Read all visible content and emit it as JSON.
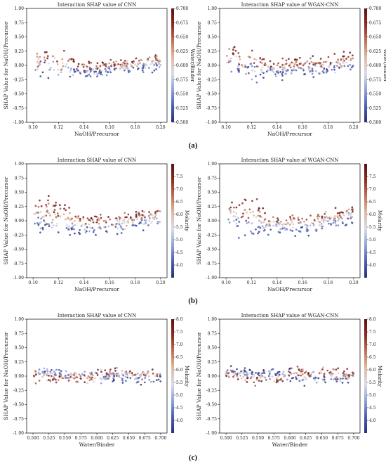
{
  "figure": {
    "captions": [
      "(a)",
      "(b)",
      "(c)"
    ]
  },
  "colors": {
    "colormap": [
      "#2b2f7a",
      "#4a5fb5",
      "#8fa3d9",
      "#d9dbe6",
      "#e2b9a4",
      "#c07254",
      "#8e2a22",
      "#5c0f14"
    ],
    "frame": "#000000"
  },
  "chart_data": [
    {
      "id": "a-cnn",
      "type": "scatter",
      "row": 0,
      "col": 0,
      "seed": 11,
      "title": "Interaction SHAP value of CNN",
      "xlabel": "NaOH/Precursor",
      "ylabel": "SHAP Value for NaOH/Precursor",
      "xlim": [
        0.095,
        0.205
      ],
      "ylim": [
        -1.0,
        1.0
      ],
      "xticks": [
        0.1,
        0.12,
        0.14,
        0.16,
        0.18,
        0.2
      ],
      "xtick_labels": [
        "0.10",
        "0.12",
        "0.14",
        "0.16",
        "0.18",
        "0.20"
      ],
      "yticks": [
        -1.0,
        -0.75,
        -0.5,
        -0.25,
        0.0,
        0.25,
        0.5,
        0.75,
        1.0
      ],
      "ytick_labels": [
        "-1.00",
        "-0.75",
        "-0.50",
        "-0.25",
        "0.00",
        "0.25",
        "0.50",
        "0.75",
        "1.00"
      ],
      "colorbar": {
        "label": "Water/Binder",
        "min": 0.5,
        "max": 0.7,
        "ticks": [
          0.5,
          0.525,
          0.55,
          0.575,
          0.6,
          0.625,
          0.65,
          0.675,
          0.7
        ],
        "tick_labels": [
          "0.500",
          "0.525",
          "0.550",
          "0.575",
          "0.600",
          "0.625",
          "0.650",
          "0.675",
          "0.700"
        ]
      },
      "trend": [
        [
          0.1,
          0.1
        ],
        [
          0.115,
          0.02
        ],
        [
          0.14,
          -0.06
        ],
        [
          0.17,
          -0.03
        ],
        [
          0.2,
          0.08
        ]
      ],
      "color_effect": "naoh-high-high",
      "grid": false
    },
    {
      "id": "a-wgan",
      "type": "scatter",
      "row": 0,
      "col": 1,
      "seed": 23,
      "title": "Interaction SHAP value of WGAN-CNN",
      "xlabel": "NaOH/Precursor",
      "ylabel": "SHAP Value for NaOH/Precursor",
      "xlim": [
        0.095,
        0.205
      ],
      "ylim": [
        -1.0,
        1.0
      ],
      "xticks": [
        0.1,
        0.12,
        0.14,
        0.16,
        0.18,
        0.2
      ],
      "xtick_labels": [
        "0.10",
        "0.12",
        "0.14",
        "0.16",
        "0.18",
        "0.20"
      ],
      "yticks": [
        -1.0,
        -0.75,
        -0.5,
        -0.25,
        0.0,
        0.25,
        0.5,
        0.75,
        1.0
      ],
      "ytick_labels": [
        "-1.00",
        "-0.75",
        "-0.50",
        "-0.25",
        "0.00",
        "0.25",
        "0.50",
        "0.75",
        "1.00"
      ],
      "colorbar": {
        "label": "Water/Binder",
        "min": 0.5,
        "max": 0.7,
        "ticks": [
          0.5,
          0.525,
          0.55,
          0.575,
          0.6,
          0.625,
          0.65,
          0.675,
          0.7
        ],
        "tick_labels": [
          "0.500",
          "0.525",
          "0.550",
          "0.575",
          "0.600",
          "0.625",
          "0.650",
          "0.675",
          "0.700"
        ]
      },
      "trend": [
        [
          0.1,
          0.1
        ],
        [
          0.115,
          0.02
        ],
        [
          0.14,
          -0.06
        ],
        [
          0.17,
          -0.02
        ],
        [
          0.2,
          0.08
        ]
      ],
      "color_effect": "naoh-high-high",
      "grid": false
    },
    {
      "id": "b-cnn",
      "type": "scatter",
      "row": 1,
      "col": 0,
      "seed": 37,
      "title": "Interaction SHAP value of CNN",
      "xlabel": "NaOH/Precursor",
      "ylabel": "SHAP Value for NaOH/Precursor",
      "xlim": [
        0.095,
        0.205
      ],
      "ylim": [
        -1.0,
        1.0
      ],
      "xticks": [
        0.1,
        0.12,
        0.14,
        0.16,
        0.18,
        0.2
      ],
      "xtick_labels": [
        "0.10",
        "0.12",
        "0.14",
        "0.16",
        "0.18",
        "0.20"
      ],
      "yticks": [
        -1.0,
        -0.75,
        -0.5,
        -0.25,
        0.0,
        0.25,
        0.5,
        0.75,
        1.0
      ],
      "ytick_labels": [
        "-1.00",
        "-0.75",
        "-0.50",
        "-0.25",
        "0.00",
        "0.25",
        "0.50",
        "0.75",
        "1.00"
      ],
      "colorbar": {
        "label": "Molarity",
        "min": 3.5,
        "max": 8.0,
        "ticks": [
          4.0,
          4.5,
          5.0,
          5.5,
          6.0,
          6.5,
          7.0,
          7.5
        ],
        "tick_labels": [
          "4.0",
          "4.5",
          "5.0",
          "5.5",
          "6.0",
          "6.5",
          "7.0",
          "7.5"
        ]
      },
      "trend": [
        [
          0.1,
          0.12
        ],
        [
          0.12,
          0.04
        ],
        [
          0.14,
          -0.08
        ],
        [
          0.17,
          -0.03
        ],
        [
          0.2,
          0.1
        ]
      ],
      "color_effect": "naoh-low-high",
      "grid": false
    },
    {
      "id": "b-wgan",
      "type": "scatter",
      "row": 1,
      "col": 1,
      "seed": 41,
      "title": "Interaction SHAP value of WGAN-CNN",
      "xlabel": "NaOH/Precursor",
      "ylabel": "SHAP Value for NaOH/Precursor",
      "xlim": [
        0.095,
        0.205
      ],
      "ylim": [
        -1.0,
        1.0
      ],
      "xticks": [
        0.1,
        0.12,
        0.14,
        0.16,
        0.18,
        0.2
      ],
      "xtick_labels": [
        "0.10",
        "0.12",
        "0.14",
        "0.16",
        "0.18",
        "0.20"
      ],
      "yticks": [
        -1.0,
        -0.75,
        -0.5,
        -0.25,
        0.0,
        0.25,
        0.5,
        0.75,
        1.0
      ],
      "ytick_labels": [
        "-1.00",
        "-0.75",
        "-0.50",
        "-0.25",
        "0.00",
        "0.25",
        "0.50",
        "0.75",
        "1.00"
      ],
      "colorbar": {
        "label": "Molarity",
        "min": 3.5,
        "max": 8.0,
        "ticks": [
          4.0,
          4.5,
          5.0,
          5.5,
          6.0,
          6.5,
          7.0,
          7.5
        ],
        "tick_labels": [
          "4.0",
          "4.5",
          "5.0",
          "5.5",
          "6.0",
          "6.5",
          "7.0",
          "7.5"
        ]
      },
      "trend": [
        [
          0.1,
          0.12
        ],
        [
          0.12,
          0.04
        ],
        [
          0.14,
          -0.08
        ],
        [
          0.17,
          -0.03
        ],
        [
          0.2,
          0.1
        ]
      ],
      "color_effect": "naoh-low-high",
      "grid": false
    },
    {
      "id": "c-cnn",
      "type": "scatter",
      "row": 2,
      "col": 0,
      "seed": 53,
      "title": "Interaction SHAP value of CNN",
      "xlabel": "Water/Binder",
      "ylabel": "SHAP Value for NaOH/Precursor",
      "xlim": [
        0.49,
        0.71
      ],
      "ylim": [
        -1.0,
        1.0
      ],
      "xticks": [
        0.5,
        0.525,
        0.55,
        0.575,
        0.6,
        0.625,
        0.65,
        0.675,
        0.7
      ],
      "xtick_labels": [
        "0.500",
        "0.525",
        "0.550",
        "0.575",
        "0.600",
        "0.625",
        "0.650",
        "0.675",
        "0.700"
      ],
      "yticks": [
        -1.0,
        -0.75,
        -0.5,
        -0.25,
        0.0,
        0.25,
        0.5,
        0.75,
        1.0
      ],
      "ytick_labels": [
        "-1.00",
        "-0.75",
        "-0.50",
        "-0.25",
        "0.00",
        "0.25",
        "0.50",
        "0.75",
        "1.00"
      ],
      "colorbar": {
        "label": "Molarity",
        "min": 3.5,
        "max": 8.0,
        "ticks": [
          4.0,
          4.5,
          5.0,
          5.5,
          6.0,
          6.5,
          7.0,
          7.5,
          8.0
        ],
        "tick_labels": [
          "4.0",
          "4.5",
          "5.0",
          "5.5",
          "6.0",
          "6.5",
          "7.0",
          "7.5",
          "8.0"
        ]
      },
      "trend": [
        [
          0.5,
          0.05
        ],
        [
          0.55,
          -0.01
        ],
        [
          0.6,
          0.0
        ],
        [
          0.65,
          0.01
        ],
        [
          0.7,
          -0.02
        ]
      ],
      "color_effect": "molarity-split",
      "grid": false
    },
    {
      "id": "c-wgan",
      "type": "scatter",
      "row": 2,
      "col": 1,
      "seed": 67,
      "title": "Interaction SHAP value of WGAN-CNN",
      "xlabel": "Water/Binder",
      "ylabel": "SHAP Value for NaOH/Precursor",
      "xlim": [
        0.49,
        0.71
      ],
      "ylim": [
        -1.0,
        1.0
      ],
      "xticks": [
        0.5,
        0.525,
        0.55,
        0.575,
        0.6,
        0.625,
        0.65,
        0.675,
        0.7
      ],
      "xtick_labels": [
        "0.500",
        "0.525",
        "0.550",
        "0.575",
        "0.600",
        "0.625",
        "0.650",
        "0.675",
        "0.700"
      ],
      "yticks": [
        -1.0,
        -0.75,
        -0.5,
        -0.25,
        0.0,
        0.25,
        0.5,
        0.75,
        1.0
      ],
      "ytick_labels": [
        "-1.00",
        "-0.75",
        "-0.50",
        "-0.25",
        "0.00",
        "0.25",
        "0.50",
        "0.75",
        "1.00"
      ],
      "colorbar": {
        "label": "Molarity",
        "min": 3.5,
        "max": 8.0,
        "ticks": [
          4.0,
          4.5,
          5.0,
          5.5,
          6.0,
          6.5,
          7.0,
          7.5,
          8.0
        ],
        "tick_labels": [
          "4.0",
          "4.5",
          "5.0",
          "5.5",
          "6.0",
          "6.5",
          "7.0",
          "7.5",
          "8.0"
        ]
      },
      "trend": [
        [
          0.5,
          0.05
        ],
        [
          0.55,
          -0.01
        ],
        [
          0.6,
          0.0
        ],
        [
          0.65,
          0.01
        ],
        [
          0.7,
          -0.02
        ]
      ],
      "color_effect": "molarity-split",
      "grid": false
    }
  ]
}
